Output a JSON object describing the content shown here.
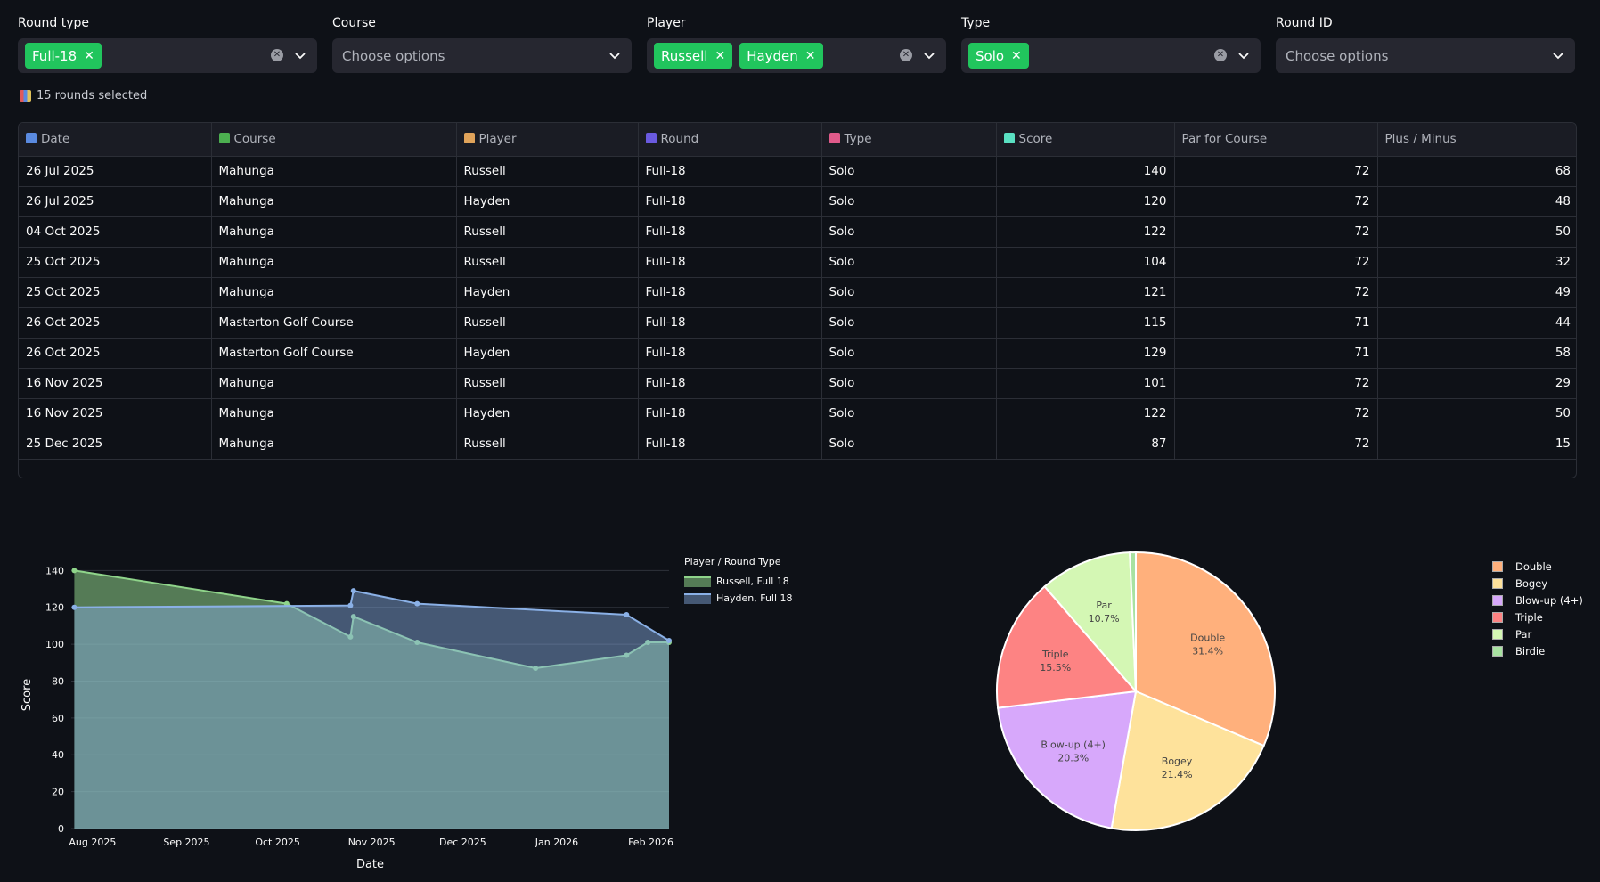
{
  "filters": [
    {
      "label": "Round type",
      "chips": [
        "Full-18"
      ],
      "placeholder": "",
      "clearable": true
    },
    {
      "label": "Course",
      "chips": [],
      "placeholder": "Choose options",
      "clearable": false
    },
    {
      "label": "Player",
      "chips": [
        "Russell",
        "Hayden"
      ],
      "placeholder": "",
      "clearable": true
    },
    {
      "label": "Type",
      "chips": [
        "Solo"
      ],
      "placeholder": "",
      "clearable": true
    },
    {
      "label": "Round ID",
      "chips": [],
      "placeholder": "Choose options",
      "clearable": false
    }
  ],
  "summary": "15 rounds selected",
  "table": {
    "headers": [
      "Date",
      "Course",
      "Player",
      "Round",
      "Type",
      "Score",
      "Par for Course",
      "Plus / Minus"
    ],
    "rows": [
      [
        "26 Jul 2025",
        "Mahunga",
        "Russell",
        "Full-18",
        "Solo",
        "140",
        "72",
        "68"
      ],
      [
        "26 Jul 2025",
        "Mahunga",
        "Hayden",
        "Full-18",
        "Solo",
        "120",
        "72",
        "48"
      ],
      [
        "04 Oct 2025",
        "Mahunga",
        "Russell",
        "Full-18",
        "Solo",
        "122",
        "72",
        "50"
      ],
      [
        "25 Oct 2025",
        "Mahunga",
        "Russell",
        "Full-18",
        "Solo",
        "104",
        "72",
        "32"
      ],
      [
        "25 Oct 2025",
        "Mahunga",
        "Hayden",
        "Full-18",
        "Solo",
        "121",
        "72",
        "49"
      ],
      [
        "26 Oct 2025",
        "Masterton Golf Course",
        "Russell",
        "Full-18",
        "Solo",
        "115",
        "71",
        "44"
      ],
      [
        "26 Oct 2025",
        "Masterton Golf Course",
        "Hayden",
        "Full-18",
        "Solo",
        "129",
        "71",
        "58"
      ],
      [
        "16 Nov 2025",
        "Mahunga",
        "Russell",
        "Full-18",
        "Solo",
        "101",
        "72",
        "29"
      ],
      [
        "16 Nov 2025",
        "Mahunga",
        "Hayden",
        "Full-18",
        "Solo",
        "122",
        "72",
        "50"
      ],
      [
        "25 Dec 2025",
        "Mahunga",
        "Russell",
        "Full-18",
        "Solo",
        "87",
        "72",
        "15"
      ]
    ]
  },
  "chart_data": [
    {
      "type": "area",
      "xlabel": "Date",
      "ylabel": "Score",
      "ylim": [
        0,
        145
      ],
      "x_ticks": [
        "Aug 2025",
        "Sep 2025",
        "Oct 2025",
        "Nov 2025",
        "Dec 2025",
        "Jan 2026",
        "Feb 2026"
      ],
      "y_ticks": [
        0,
        20,
        40,
        60,
        80,
        100,
        120,
        140
      ],
      "legend_title": "Player / Round Type",
      "legend_position": "top-right",
      "series": [
        {
          "name": "Russell, Full 18",
          "color": "#8fd48a",
          "points": [
            [
              "2025-07-26",
              140
            ],
            [
              "2025-10-04",
              122
            ],
            [
              "2025-10-25",
              104
            ],
            [
              "2025-10-26",
              115
            ],
            [
              "2025-11-16",
              101
            ],
            [
              "2025-12-25",
              87
            ],
            [
              "2026-01-24",
              94
            ],
            [
              "2026-01-31",
              101
            ],
            [
              "2026-02-07",
              101
            ]
          ]
        },
        {
          "name": "Hayden, Full 18",
          "color": "#8ab0e6",
          "points": [
            [
              "2025-07-26",
              120
            ],
            [
              "2025-10-25",
              121
            ],
            [
              "2025-10-26",
              129
            ],
            [
              "2025-11-16",
              122
            ],
            [
              "2026-01-24",
              116
            ],
            [
              "2026-02-07",
              102
            ]
          ]
        }
      ]
    },
    {
      "type": "pie",
      "legend_position": "right",
      "slices": [
        {
          "label": "Double",
          "value": 31.4,
          "color": "#ffb07c"
        },
        {
          "label": "Bogey",
          "value": 21.4,
          "color": "#fee29b"
        },
        {
          "label": "Blow-up (4+)",
          "value": 20.3,
          "color": "#d7a8fb"
        },
        {
          "label": "Triple",
          "value": 15.5,
          "color": "#fd8383"
        },
        {
          "label": "Par",
          "value": 10.7,
          "color": "#d4f7b4"
        },
        {
          "label": "Birdie",
          "value": 0.7,
          "color": "#a8e2a1"
        }
      ]
    }
  ]
}
